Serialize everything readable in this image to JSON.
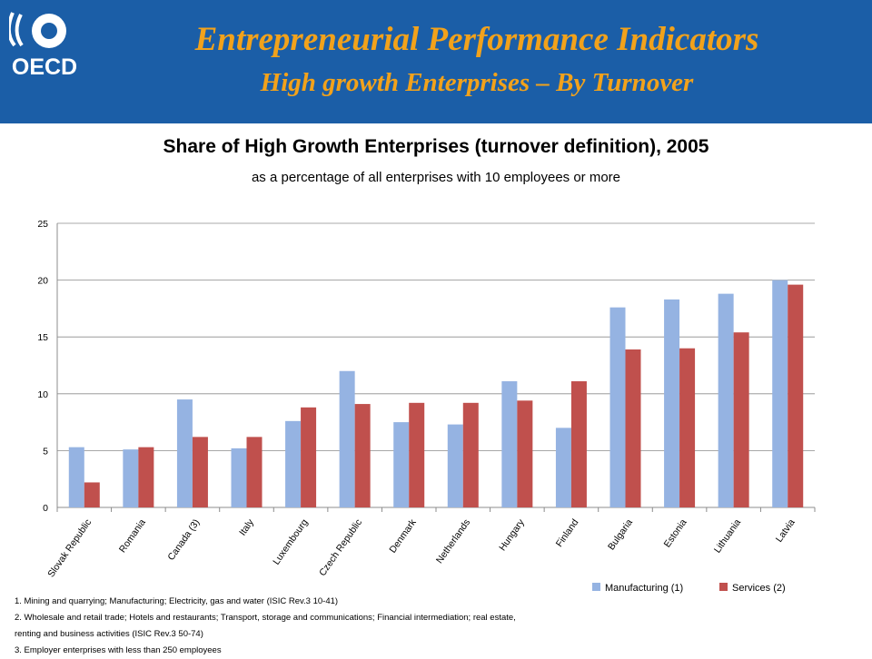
{
  "header": {
    "logo_text": "OECD",
    "title": "Entrepreneurial Performance Indicators",
    "subtitle": "High growth Enterprises – By Turnover",
    "background_color": "#1b5ea7",
    "title_color": "#f2a21b"
  },
  "chart_data": {
    "type": "bar",
    "title": "Share of High Growth Enterprises (turnover definition), 2005",
    "subtitle": "as a percentage of all enterprises with 10 employees or more",
    "categories": [
      "Slovak Republic",
      "Romania",
      "Canada (3)",
      "Italy",
      "Luxembourg",
      "Czech Republic",
      "Denmark",
      "Netherlands",
      "Hungary",
      "Finland",
      "Bulgaria",
      "Estonia",
      "Lithuania",
      "Latvia"
    ],
    "series": [
      {
        "name": "Manufacturing (1)",
        "color": "#95b3e2",
        "values": [
          5.3,
          5.1,
          9.5,
          5.2,
          7.6,
          12.0,
          7.5,
          7.3,
          11.1,
          7.0,
          17.6,
          18.3,
          18.8,
          20.0
        ]
      },
      {
        "name": "Services (2)",
        "color": "#c0504d",
        "values": [
          2.2,
          5.3,
          6.2,
          6.2,
          8.8,
          9.1,
          9.2,
          9.2,
          9.4,
          11.1,
          13.9,
          14.0,
          15.4,
          19.6
        ]
      }
    ],
    "ylim": [
      0,
      25
    ],
    "yticks": [
      0,
      5,
      10,
      15,
      20,
      25
    ],
    "grid": true,
    "legend_position": "bottom-right"
  },
  "footnotes": [
    "1. Mining and quarrying; Manufacturing; Electricity, gas and water (ISIC Rev.3 10-41)",
    "2. Wholesale and retail trade; Hotels and restaurants; Transport, storage and communications; Financial intermediation; real estate,",
    "renting and business activities (ISIC Rev.3 50-74)",
    "3. Employer enterprises with less than 250 employees"
  ]
}
